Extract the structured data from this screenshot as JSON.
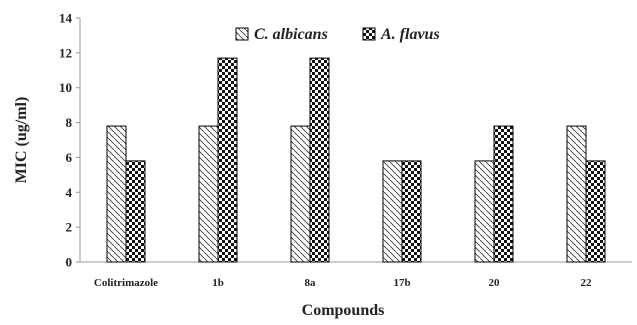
{
  "chart_data": {
    "type": "bar",
    "categories": [
      "Colitrimazole",
      "1b",
      "8a",
      "17b",
      "20",
      "22"
    ],
    "series": [
      {
        "name": "C. albicans",
        "values": [
          7.8,
          7.8,
          7.8,
          5.8,
          5.8,
          7.8
        ],
        "pattern": "diagonal-hatch"
      },
      {
        "name": "A. flavus",
        "values": [
          5.8,
          11.7,
          11.7,
          5.8,
          7.8,
          5.8
        ],
        "pattern": "checker"
      }
    ],
    "title": "",
    "xlabel": "Compounds",
    "ylabel": "MIC (ug/ml)",
    "ylim": [
      0,
      14
    ],
    "yticks": [
      "0",
      "2",
      "4",
      "6",
      "8",
      "10",
      "12",
      "14"
    ],
    "grid": false,
    "legend_position": "top-center"
  }
}
